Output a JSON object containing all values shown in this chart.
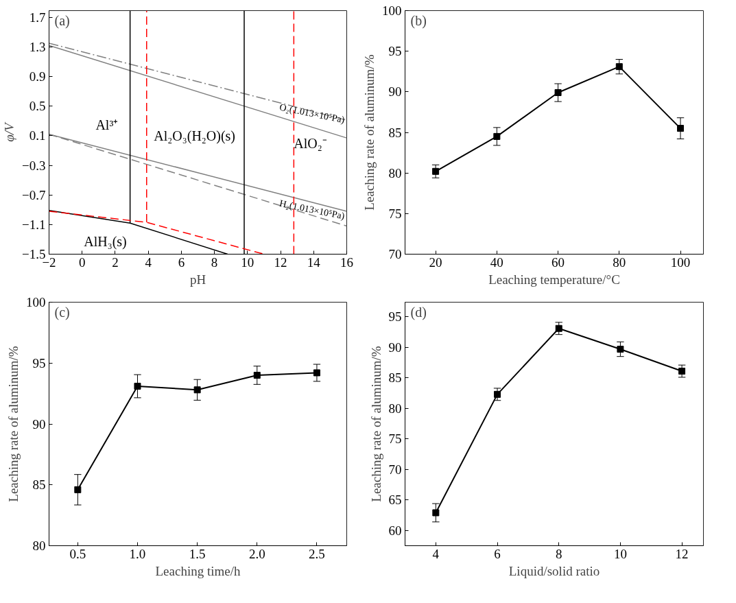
{
  "chart_data": [
    {
      "type": "line",
      "xlabel": "pH",
      "ylabel": "φ/V",
      "xlim": [
        -2,
        16
      ],
      "ylim": [
        -1.5,
        1.79
      ],
      "xticks": [
        {
          "value": -2,
          "label": "−2"
        },
        0,
        2,
        4,
        6,
        8,
        10,
        12,
        14,
        16
      ],
      "yticks": [
        {
          "value": -1.5,
          "label": "−1.5"
        },
        {
          "value": -1.1,
          "label": "−1.1"
        },
        {
          "value": -0.7,
          "label": "−0.7"
        },
        {
          "value": -0.3,
          "label": "−0.3"
        },
        0.1,
        0.5,
        0.9,
        1.3,
        1.7
      ],
      "series": [
        {
          "color": "#808080",
          "line_style": "solid",
          "x": [
            -2,
            16
          ],
          "values": [
            1.32,
            0.07
          ]
        },
        {
          "color": "#808080",
          "line_style": "dashdot",
          "x": [
            -2,
            16
          ],
          "values": [
            1.35,
            0.31
          ]
        },
        {
          "color": "#808080",
          "line_style": "solid",
          "x": [
            -2,
            16
          ],
          "values": [
            0.12,
            -0.92
          ]
        },
        {
          "color": "#808080",
          "line_style": "dashed",
          "x": [
            -2,
            16
          ],
          "values": [
            0.12,
            -1.12
          ]
        },
        {
          "color": "#000000",
          "line_style": "solid",
          "x": [
            -2,
            2.9,
            8.8
          ],
          "values": [
            -0.91,
            -1.08,
            -1.5
          ]
        },
        {
          "color": "#000000",
          "line_style": "solid",
          "x": [
            2.9,
            2.9
          ],
          "values": [
            -1.08,
            1.79
          ]
        },
        {
          "color": "#000000",
          "line_style": "solid",
          "x": [
            9.8,
            9.8
          ],
          "values": [
            -1.5,
            1.79
          ]
        },
        {
          "color": "#ff0000",
          "line_style": "dashed",
          "x": [
            -2,
            3.9,
            11.0
          ],
          "values": [
            -0.92,
            -1.07,
            -1.5
          ]
        },
        {
          "color": "#ff0000",
          "line_style": "dashed",
          "x": [
            3.9,
            3.9
          ],
          "values": [
            -1.07,
            1.79
          ]
        },
        {
          "color": "#ff0000",
          "line_style": "dashed",
          "x": [
            12.8,
            12.8
          ],
          "values": [
            -1.5,
            1.79
          ]
        }
      ],
      "annotations": [
        "(a)",
        "Al³⁺",
        "Al₂O₃(H₂O)(s)",
        "AlO₂⁻",
        "AlH₃(s)",
        "O₂(1.013×10⁵Pa)",
        "H₂(1.013×10⁵Pa)"
      ]
    },
    {
      "type": "line",
      "xlabel": "Leaching temperature/°C",
      "ylabel": "Leaching rate of aluminum/%",
      "xlim": [
        10,
        107.5
      ],
      "ylim": [
        70,
        100
      ],
      "xticks": [
        20,
        40,
        60,
        80,
        100
      ],
      "yticks": [
        70,
        75,
        80,
        85,
        90,
        95,
        100
      ],
      "marker": "square",
      "line_style": "solid",
      "x": [
        20,
        40,
        60,
        80,
        100
      ],
      "series": [
        {
          "color": "#000000",
          "values": [
            80.2,
            84.5,
            89.9,
            93.1,
            85.5
          ],
          "errors": [
            0.8,
            1.1,
            1.1,
            0.9,
            1.3
          ]
        }
      ],
      "annotations": [
        "(b)"
      ]
    },
    {
      "type": "line",
      "xlabel": "Leaching time/h",
      "ylabel": "Leaching rate of aluminum/%",
      "xlim": [
        0.26,
        2.75
      ],
      "ylim": [
        80,
        100
      ],
      "xticks": [
        0.5,
        {
          "value": 1,
          "label": "1.0"
        },
        1.5,
        {
          "value": 2,
          "label": "2.0"
        },
        2.5
      ],
      "yticks": [
        80,
        85,
        90,
        95,
        100
      ],
      "marker": "square",
      "line_style": "solid",
      "x": [
        0.5,
        1.0,
        1.5,
        2.0,
        2.5
      ],
      "series": [
        {
          "color": "#000000",
          "values": [
            84.6,
            93.1,
            92.8,
            94.0,
            94.2
          ],
          "errors": [
            1.25,
            0.95,
            0.85,
            0.75,
            0.7
          ]
        }
      ],
      "annotations": [
        "(c)"
      ]
    },
    {
      "type": "line",
      "xlabel": "Liquid/solid ratio",
      "ylabel": "Leaching rate of aluminum/%",
      "xlim": [
        3.0,
        12.7
      ],
      "ylim": [
        57.5,
        97.4
      ],
      "xticks": [
        4,
        6,
        8,
        10,
        12
      ],
      "yticks": [
        60,
        65,
        70,
        75,
        80,
        85,
        90,
        95
      ],
      "marker": "square",
      "line_style": "solid",
      "x": [
        4,
        6,
        8,
        10,
        12
      ],
      "series": [
        {
          "color": "#000000",
          "values": [
            62.9,
            82.3,
            93.1,
            89.7,
            86.1
          ],
          "errors": [
            1.5,
            1.0,
            1.0,
            1.2,
            1.0
          ]
        }
      ],
      "annotations": [
        "(d)"
      ]
    }
  ]
}
